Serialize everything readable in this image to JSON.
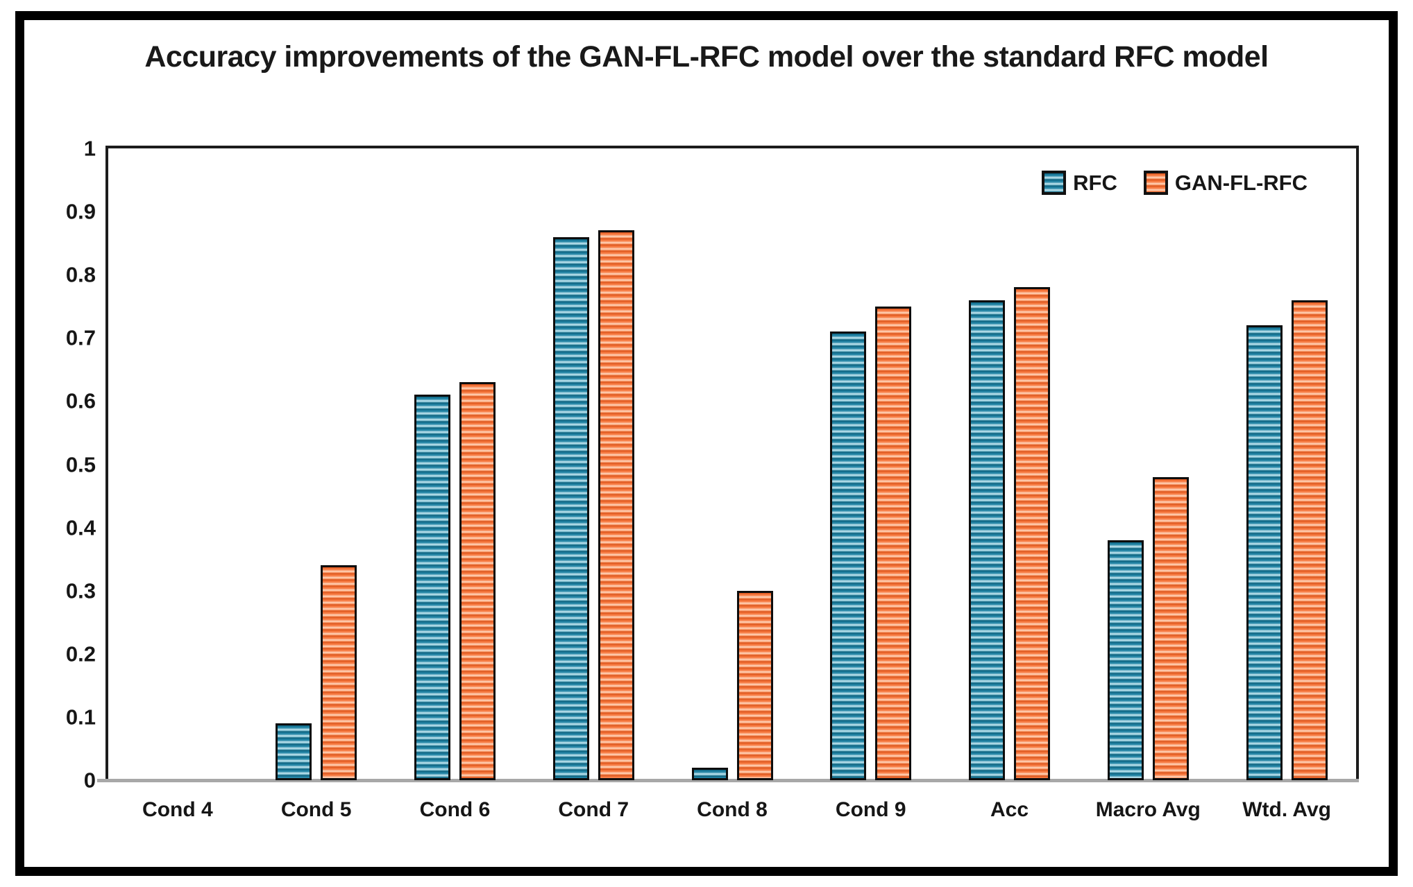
{
  "frame": {
    "background": "#ffffff",
    "border_color": "#000000"
  },
  "chart_data": {
    "type": "bar",
    "title": "Accuracy improvements of the GAN-FL-RFC model over the standard RFC model",
    "categories": [
      "Cond 4",
      "Cond 5",
      "Cond 6",
      "Cond 7",
      "Cond 8",
      "Cond 9",
      "Acc",
      "Macro Avg",
      "Wtd. Avg"
    ],
    "series": [
      {
        "name": "RFC",
        "color": "#1b7e9e",
        "values": [
          0,
          0.09,
          0.61,
          0.86,
          0.02,
          0.71,
          0.76,
          0.38,
          0.72
        ]
      },
      {
        "name": "GAN-FL-RFC",
        "color": "#f67d45",
        "values": [
          0,
          0.34,
          0.63,
          0.87,
          0.3,
          0.75,
          0.78,
          0.48,
          0.76
        ]
      }
    ],
    "xlabel": "",
    "ylabel": "",
    "ylim": [
      0,
      1
    ],
    "yticks": [
      0,
      0.1,
      0.2,
      0.3,
      0.4,
      0.5,
      0.6,
      0.7,
      0.8,
      0.9,
      1
    ],
    "ytick_labels": [
      "0",
      "0.1",
      "0.2",
      "0.3",
      "0.4",
      "0.5",
      "0.6",
      "0.7",
      "0.8",
      "0.9",
      "1"
    ],
    "grid": false,
    "legend_position": "top-right"
  }
}
